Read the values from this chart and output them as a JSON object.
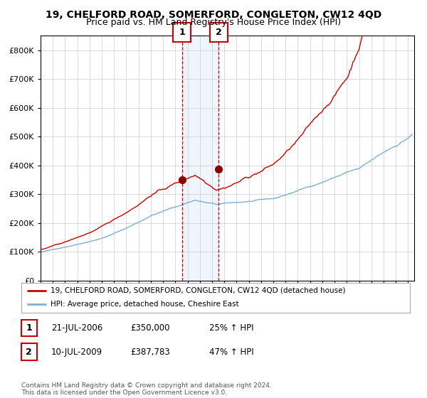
{
  "title": "19, CHELFORD ROAD, SOMERFORD, CONGLETON, CW12 4QD",
  "subtitle": "Price paid vs. HM Land Registry's House Price Index (HPI)",
  "xlim": [
    1995.0,
    2025.5
  ],
  "ylim": [
    0,
    850000
  ],
  "yticks": [
    0,
    100000,
    200000,
    300000,
    400000,
    500000,
    600000,
    700000,
    800000
  ],
  "ytick_labels": [
    "£0",
    "£100K",
    "£200K",
    "£300K",
    "£400K",
    "£500K",
    "£600K",
    "£700K",
    "£800K"
  ],
  "hpi_color": "#7bafd4",
  "price_color": "#cc0000",
  "sale1_date": 2006.55,
  "sale1_price": 350000,
  "sale2_date": 2009.53,
  "sale2_price": 387783,
  "shade_start": 2006.55,
  "shade_end": 2009.53,
  "legend1_label": "19, CHELFORD ROAD, SOMERFORD, CONGLETON, CW12 4QD (detached house)",
  "legend2_label": "HPI: Average price, detached house, Cheshire East",
  "table_rows": [
    {
      "num": "1",
      "date": "21-JUL-2006",
      "price": "£350,000",
      "pct": "25% ↑ HPI"
    },
    {
      "num": "2",
      "date": "10-JUL-2009",
      "price": "£387,783",
      "pct": "47% ↑ HPI"
    }
  ],
  "footnote": "Contains HM Land Registry data © Crown copyright and database right 2024.\nThis data is licensed under the Open Government Licence v3.0.",
  "bg_color": "#ffffff",
  "grid_color": "#cccccc",
  "title_fontsize": 10,
  "subtitle_fontsize": 9
}
